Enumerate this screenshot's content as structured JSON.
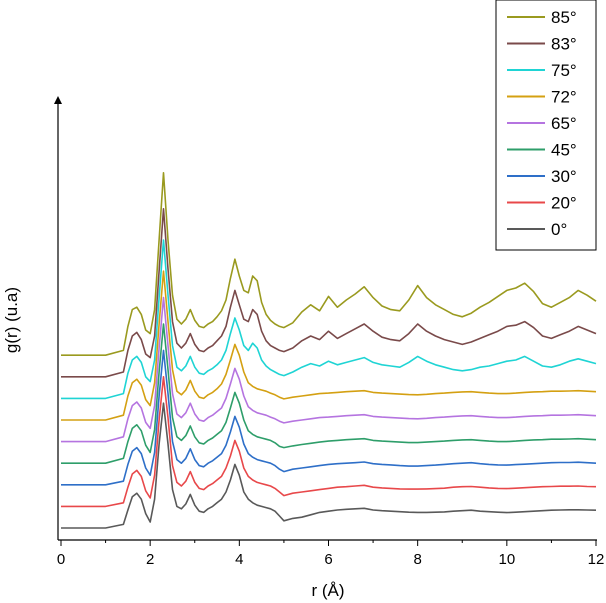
{
  "chart_data": {
    "type": "line",
    "title": "",
    "xlabel": "r (Å)",
    "ylabel": "g(r) (u.a)",
    "xlim": [
      0,
      12
    ],
    "x_ticks": [
      "0",
      "2",
      "4",
      "6",
      "8",
      "10",
      "12"
    ],
    "grid": false,
    "legend_position": "top-right",
    "y_axis_has_tick_labels": false,
    "x": [
      0,
      1,
      1.4,
      1.5,
      1.6,
      1.7,
      1.8,
      1.9,
      2.0,
      2.1,
      2.2,
      2.3,
      2.4,
      2.5,
      2.6,
      2.7,
      2.8,
      2.9,
      3.0,
      3.1,
      3.2,
      3.3,
      3.4,
      3.5,
      3.6,
      3.7,
      3.8,
      3.9,
      4.0,
      4.1,
      4.2,
      4.3,
      4.4,
      4.5,
      4.6,
      4.7,
      4.8,
      4.9,
      5.0,
      5.2,
      5.4,
      5.6,
      5.8,
      6.0,
      6.2,
      6.4,
      6.6,
      6.8,
      7.0,
      7.2,
      7.4,
      7.6,
      7.8,
      8.0,
      8.2,
      8.4,
      8.6,
      8.8,
      9.0,
      9.2,
      9.4,
      9.6,
      9.8,
      10.0,
      10.2,
      10.4,
      10.6,
      10.8,
      11.0,
      11.2,
      11.4,
      11.6,
      11.8,
      12.0
    ],
    "series": [
      {
        "name": "0°",
        "color": "#595959",
        "y": [
          0.0,
          0.0,
          0.15,
          0.75,
          1.3,
          1.45,
          1.2,
          0.6,
          0.25,
          1.2,
          3.5,
          5.2,
          3.5,
          1.6,
          0.9,
          0.8,
          1.0,
          1.4,
          0.95,
          0.7,
          0.65,
          0.8,
          0.9,
          1.05,
          1.2,
          1.5,
          2.0,
          2.65,
          2.2,
          1.5,
          1.2,
          1.05,
          0.95,
          0.9,
          0.85,
          0.8,
          0.7,
          0.5,
          0.3,
          0.4,
          0.45,
          0.55,
          0.65,
          0.7,
          0.75,
          0.78,
          0.8,
          0.82,
          0.75,
          0.72,
          0.7,
          0.68,
          0.66,
          0.65,
          0.65,
          0.66,
          0.67,
          0.7,
          0.72,
          0.74,
          0.7,
          0.68,
          0.66,
          0.64,
          0.66,
          0.68,
          0.7,
          0.72,
          0.74,
          0.75,
          0.76,
          0.76,
          0.75,
          0.74
        ]
      },
      {
        "name": "20°",
        "color": "#e8484a",
        "y": [
          0.0,
          0.0,
          0.15,
          0.8,
          1.35,
          1.5,
          1.25,
          0.65,
          0.35,
          1.3,
          3.6,
          5.4,
          3.7,
          1.7,
          1.0,
          0.85,
          1.05,
          1.45,
          1.0,
          0.75,
          0.7,
          0.85,
          0.95,
          1.1,
          1.25,
          1.6,
          2.1,
          2.75,
          2.3,
          1.6,
          1.25,
          1.1,
          1.0,
          0.95,
          0.9,
          0.85,
          0.75,
          0.6,
          0.45,
          0.55,
          0.6,
          0.65,
          0.7,
          0.75,
          0.8,
          0.82,
          0.85,
          0.88,
          0.8,
          0.77,
          0.75,
          0.73,
          0.72,
          0.72,
          0.73,
          0.74,
          0.76,
          0.8,
          0.82,
          0.83,
          0.8,
          0.77,
          0.75,
          0.74,
          0.76,
          0.78,
          0.8,
          0.82,
          0.83,
          0.84,
          0.84,
          0.85,
          0.83,
          0.82
        ]
      },
      {
        "name": "30°",
        "color": "#2e6fc8",
        "y": [
          0.0,
          0.0,
          0.15,
          0.85,
          1.4,
          1.55,
          1.3,
          0.7,
          0.4,
          1.35,
          3.7,
          5.6,
          3.8,
          1.8,
          1.05,
          0.9,
          1.1,
          1.5,
          1.05,
          0.8,
          0.75,
          0.9,
          1.0,
          1.15,
          1.3,
          1.65,
          2.2,
          2.85,
          2.4,
          1.7,
          1.3,
          1.15,
          1.05,
          1.0,
          0.95,
          0.9,
          0.8,
          0.65,
          0.55,
          0.65,
          0.7,
          0.75,
          0.8,
          0.85,
          0.88,
          0.9,
          0.92,
          0.95,
          0.88,
          0.85,
          0.83,
          0.8,
          0.78,
          0.78,
          0.8,
          0.82,
          0.85,
          0.88,
          0.9,
          0.92,
          0.88,
          0.85,
          0.83,
          0.82,
          0.84,
          0.86,
          0.88,
          0.9,
          0.92,
          0.93,
          0.93,
          0.94,
          0.92,
          0.9
        ]
      },
      {
        "name": "45°",
        "color": "#2e9e6a",
        "y": [
          0.0,
          0.0,
          0.2,
          0.9,
          1.45,
          1.6,
          1.35,
          0.75,
          0.45,
          1.4,
          3.8,
          5.8,
          3.9,
          1.9,
          1.1,
          0.95,
          1.15,
          1.55,
          1.1,
          0.85,
          0.8,
          0.95,
          1.05,
          1.2,
          1.35,
          1.7,
          2.3,
          2.95,
          2.5,
          1.8,
          1.35,
          1.2,
          1.1,
          1.05,
          1.0,
          0.95,
          0.85,
          0.7,
          0.65,
          0.72,
          0.78,
          0.83,
          0.88,
          0.92,
          0.95,
          0.98,
          1.0,
          1.02,
          0.95,
          0.92,
          0.9,
          0.88,
          0.86,
          0.86,
          0.88,
          0.9,
          0.92,
          0.95,
          0.97,
          0.98,
          0.95,
          0.92,
          0.9,
          0.9,
          0.92,
          0.95,
          0.97,
          0.98,
          1.0,
          1.0,
          1.01,
          1.02,
          1.0,
          0.98
        ]
      },
      {
        "name": "65°",
        "color": "#b574e0",
        "y": [
          0.0,
          0.0,
          0.2,
          0.95,
          1.5,
          1.65,
          1.4,
          0.8,
          0.55,
          1.5,
          3.9,
          6.0,
          4.0,
          2.0,
          1.15,
          1.0,
          1.2,
          1.6,
          1.15,
          0.9,
          0.85,
          1.0,
          1.1,
          1.25,
          1.4,
          1.8,
          2.4,
          3.05,
          2.6,
          1.9,
          1.45,
          1.3,
          1.2,
          1.15,
          1.1,
          1.02,
          0.95,
          0.85,
          0.78,
          0.85,
          0.9,
          0.95,
          1.0,
          1.02,
          1.05,
          1.08,
          1.1,
          1.12,
          1.05,
          1.02,
          1.0,
          0.98,
          0.96,
          0.95,
          0.97,
          1.0,
          1.02,
          1.05,
          1.07,
          1.08,
          1.05,
          1.02,
          1.0,
          1.0,
          1.02,
          1.05,
          1.07,
          1.08,
          1.1,
          1.1,
          1.11,
          1.12,
          1.1,
          1.08
        ]
      },
      {
        "name": "72°",
        "color": "#d4a012",
        "y": [
          0.0,
          0.0,
          0.2,
          1.0,
          1.55,
          1.7,
          1.45,
          0.85,
          0.6,
          1.55,
          4.0,
          6.2,
          4.1,
          2.1,
          1.2,
          1.05,
          1.25,
          1.65,
          1.2,
          0.95,
          0.9,
          1.05,
          1.15,
          1.3,
          1.5,
          1.9,
          2.5,
          3.15,
          2.7,
          2.0,
          1.55,
          1.4,
          1.3,
          1.25,
          1.2,
          1.12,
          1.05,
          0.95,
          0.88,
          0.95,
          1.0,
          1.05,
          1.1,
          1.12,
          1.15,
          1.18,
          1.2,
          1.22,
          1.15,
          1.12,
          1.1,
          1.08,
          1.06,
          1.05,
          1.07,
          1.1,
          1.12,
          1.15,
          1.17,
          1.18,
          1.15,
          1.12,
          1.1,
          1.1,
          1.12,
          1.15,
          1.17,
          1.18,
          1.2,
          1.2,
          1.21,
          1.22,
          1.2,
          1.18
        ]
      },
      {
        "name": "75°",
        "color": "#1fd4d4",
        "y": [
          0.0,
          0.0,
          0.2,
          1.05,
          1.6,
          1.75,
          1.5,
          0.9,
          0.7,
          1.6,
          4.2,
          6.6,
          4.3,
          2.2,
          1.3,
          1.15,
          1.35,
          1.75,
          1.3,
          1.05,
          1.0,
          1.15,
          1.25,
          1.4,
          1.6,
          2.0,
          2.7,
          3.35,
          2.85,
          2.2,
          2.0,
          2.3,
          2.1,
          1.6,
          1.35,
          1.2,
          1.1,
          1.0,
          0.95,
          1.1,
          1.3,
          1.45,
          1.35,
          1.55,
          1.4,
          1.5,
          1.6,
          1.7,
          1.5,
          1.4,
          1.35,
          1.3,
          1.5,
          1.75,
          1.55,
          1.4,
          1.3,
          1.2,
          1.15,
          1.2,
          1.3,
          1.35,
          1.45,
          1.55,
          1.6,
          1.75,
          1.55,
          1.35,
          1.3,
          1.4,
          1.55,
          1.65,
          1.55,
          1.45
        ]
      },
      {
        "name": "83°",
        "color": "#7a4a4a",
        "y": [
          0.0,
          0.0,
          0.2,
          1.1,
          1.7,
          1.85,
          1.55,
          0.95,
          0.8,
          1.7,
          4.4,
          7.0,
          4.5,
          2.3,
          1.4,
          1.2,
          1.4,
          1.8,
          1.35,
          1.1,
          1.05,
          1.2,
          1.3,
          1.5,
          1.7,
          2.1,
          2.9,
          3.6,
          3.0,
          2.4,
          2.3,
          2.8,
          2.6,
          1.9,
          1.5,
          1.3,
          1.2,
          1.1,
          1.05,
          1.2,
          1.5,
          1.7,
          1.55,
          1.9,
          1.6,
          1.8,
          2.0,
          2.2,
          1.9,
          1.65,
          1.55,
          1.5,
          1.8,
          2.2,
          1.9,
          1.7,
          1.55,
          1.45,
          1.35,
          1.45,
          1.6,
          1.75,
          1.9,
          2.1,
          2.15,
          2.3,
          2.05,
          1.7,
          1.6,
          1.75,
          1.9,
          2.1,
          1.95,
          1.8
        ]
      },
      {
        "name": "85°",
        "color": "#9a9a1f",
        "y": [
          0.0,
          0.0,
          0.2,
          1.2,
          1.9,
          2.0,
          1.7,
          1.05,
          0.9,
          1.9,
          4.8,
          7.6,
          4.8,
          2.5,
          1.5,
          1.3,
          1.5,
          1.9,
          1.45,
          1.2,
          1.15,
          1.3,
          1.4,
          1.6,
          1.85,
          2.3,
          3.2,
          4.0,
          3.3,
          2.7,
          2.6,
          3.3,
          3.1,
          2.2,
          1.7,
          1.45,
          1.3,
          1.2,
          1.15,
          1.35,
          1.8,
          2.1,
          1.85,
          2.45,
          2.0,
          2.3,
          2.55,
          2.85,
          2.4,
          2.05,
          1.9,
          1.85,
          2.3,
          2.9,
          2.4,
          2.1,
          1.9,
          1.7,
          1.6,
          1.75,
          2.0,
          2.2,
          2.45,
          2.7,
          2.8,
          3.0,
          2.65,
          2.15,
          2.0,
          2.2,
          2.4,
          2.7,
          2.5,
          2.25
        ]
      }
    ],
    "offsets": [
      0.0,
      0.9,
      1.8,
      2.7,
      3.6,
      4.5,
      5.4,
      6.3,
      7.2
    ]
  }
}
